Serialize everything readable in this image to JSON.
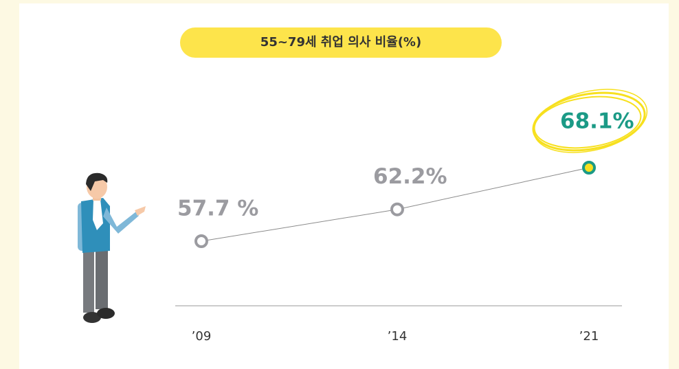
{
  "chart_data": {
    "type": "line",
    "title": "55~79세 취업 의사 비율(%)",
    "categories": [
      "’09",
      "’14",
      "’21"
    ],
    "values": [
      57.7,
      62.2,
      68.1
    ],
    "value_labels": [
      "57.7 %",
      "62.2%",
      "68.1%"
    ],
    "point_colors": [
      "#9b9ba0",
      "#9b9ba0",
      "#1b9a86"
    ],
    "line_color": "#8a8a8a"
  }
}
